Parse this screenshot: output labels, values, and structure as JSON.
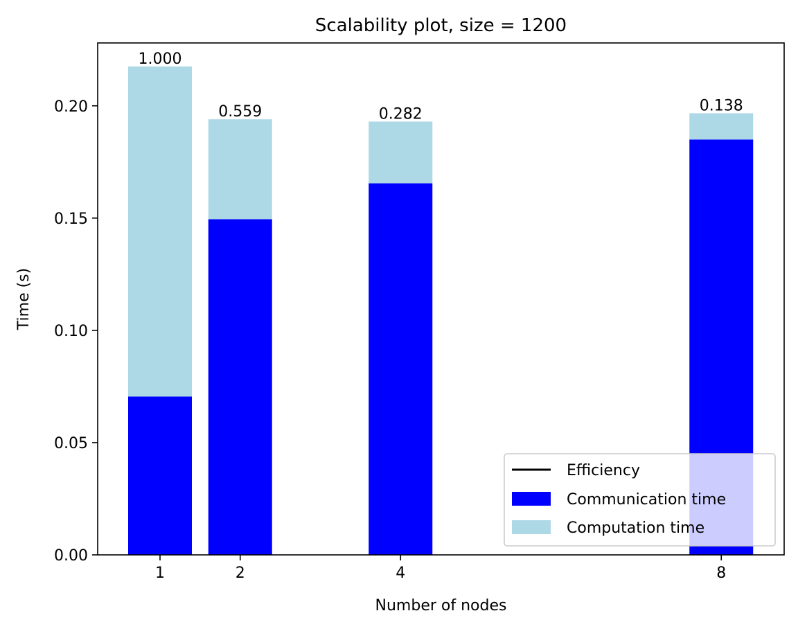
{
  "chart_data": {
    "type": "bar",
    "stacked": true,
    "title": "Scalability plot, size = 1200",
    "xlabel": "Number of nodes",
    "ylabel": "Time (s)",
    "x": [
      1,
      2,
      4,
      8
    ],
    "x_tick_labels": [
      "1",
      "2",
      "4",
      "8"
    ],
    "ylim": [
      0,
      0.228
    ],
    "y_ticks": [
      0.0,
      0.05,
      0.1,
      0.15,
      0.2
    ],
    "y_tick_labels": [
      "0.00",
      "0.05",
      "0.10",
      "0.15",
      "0.20"
    ],
    "series": [
      {
        "name": "Communication time",
        "color": "#0000ff",
        "values": [
          0.0705,
          0.1495,
          0.1655,
          0.185
        ]
      },
      {
        "name": "Computation time",
        "color": "#add8e6",
        "values": [
          0.147,
          0.0445,
          0.0275,
          0.0117
        ]
      }
    ],
    "efficiency": {
      "name": "Efficiency",
      "color": "#000000",
      "labels": [
        "1.000",
        "0.559",
        "0.282",
        "0.138"
      ]
    },
    "legend": {
      "position": "lower right",
      "entries": [
        {
          "label": "Efficiency",
          "kind": "line",
          "color": "#000000"
        },
        {
          "label": "Communication time",
          "kind": "patch",
          "color": "#0000ff"
        },
        {
          "label": "Computation time",
          "kind": "patch",
          "color": "#add8e6"
        }
      ]
    },
    "grid": false
  }
}
